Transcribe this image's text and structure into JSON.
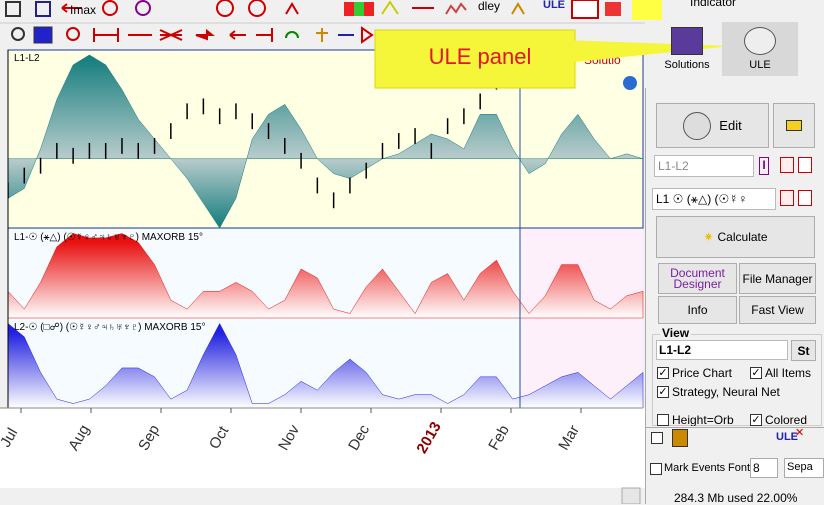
{
  "toolbar": {
    "imax": "Imax",
    "dley": "dley",
    "ule": "ULE",
    "indicator": "Indicator"
  },
  "callout": "ULE panel",
  "top_buttons": {
    "solutions": "Solutions",
    "ule": "ULE"
  },
  "chart": {
    "partial_label": "Solutio",
    "months": [
      "Jul",
      "Aug",
      "Sep",
      "Oct",
      "Nov",
      "Dec",
      "2013",
      "Feb",
      "Mar"
    ],
    "panes": [
      {
        "label": "L1-L2",
        "color": "#127c7c",
        "ylim": [
          -70,
          110
        ],
        "wave": [
          -40,
          -30,
          10,
          60,
          95,
          105,
          95,
          70,
          40,
          20,
          0,
          -20,
          -45,
          -70,
          -40,
          20,
          45,
          55,
          30,
          0,
          -15,
          -20,
          -10,
          0,
          5,
          15,
          25,
          20,
          10,
          45,
          45,
          10,
          -15,
          -5,
          25,
          45,
          20,
          0,
          5,
          0
        ],
        "price_high": [
          -24,
          -9,
          1,
          16,
          11,
          16,
          16,
          21,
          16,
          21,
          36,
          56,
          61,
          51,
          56,
          46,
          36,
          21,
          6,
          -19,
          -34,
          -19,
          -4,
          16,
          26,
          31,
          16,
          41,
          51,
          66,
          86
        ],
        "price_low": [
          -40,
          -25,
          -15,
          0,
          -5,
          0,
          0,
          5,
          0,
          5,
          20,
          40,
          45,
          35,
          40,
          30,
          20,
          5,
          -10,
          -35,
          -50,
          -35,
          -20,
          0,
          10,
          15,
          0,
          25,
          35,
          50,
          70
        ]
      },
      {
        "label": "L1-☉ (⚹△) (☉☿♀♂♃♄♅♆♇) MAXORB 15°",
        "color": "#e81010",
        "ylim": [
          0,
          100
        ],
        "wave": [
          30,
          10,
          40,
          80,
          95,
          90,
          90,
          95,
          85,
          60,
          20,
          10,
          30,
          30,
          40,
          30,
          10,
          20,
          55,
          45,
          10,
          5,
          35,
          55,
          30,
          5,
          40,
          50,
          20,
          50,
          65,
          30,
          5,
          25,
          60,
          60,
          20,
          10,
          25,
          30
        ]
      },
      {
        "label": "L2-☉ (□☍) (☉☿♀♂♃♄♅♆♇) MAXORB 15°",
        "color": "#2020e0",
        "ylim": [
          0,
          100
        ],
        "wave": [
          95,
          80,
          40,
          10,
          5,
          10,
          25,
          45,
          45,
          35,
          10,
          20,
          60,
          95,
          60,
          5,
          5,
          15,
          30,
          20,
          40,
          55,
          40,
          15,
          10,
          15,
          15,
          5,
          15,
          35,
          35,
          10,
          15,
          25,
          35,
          40,
          25,
          10,
          25,
          40
        ]
      }
    ]
  },
  "side_panel": {
    "edit": "Edit",
    "name_input": "L1-L2",
    "select": "L1 ☉ (⚹△) (☉☿♀",
    "calculate": "Calculate",
    "document_designer": "Document Designer",
    "file_manager": "File Manager",
    "info": "Info",
    "fast_view": "Fast View",
    "view": "View",
    "view_select": "L1-L2",
    "st": "St",
    "price_chart": "Price Chart",
    "all_items": "All Items",
    "strategy": "Strategy, Neural Net",
    "height_orb": "Height=Orb",
    "colored": "Colored",
    "ule": "ULE",
    "mark_events": "Mark Events",
    "font": "Font",
    "font_size": "8",
    "sepa": "Sepa",
    "status": "284.3 Mb used 22.00%"
  }
}
